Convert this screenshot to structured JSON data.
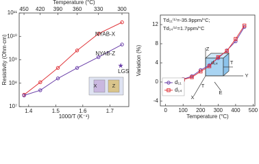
{
  "chart_data": [
    {
      "type": "line",
      "xlabel": "1000/T (K⁻¹)",
      "ylabel": "Resistivity (Ohm·cm)",
      "x2label": "Temperature (°C)",
      "xlim": [
        1.365,
        1.77
      ],
      "xticks": [
        1.4,
        1.5,
        1.6,
        1.7
      ],
      "x2ticks": [
        450,
        420,
        390,
        360,
        330,
        300
      ],
      "ylim": [
        10000000,
        100000000000
      ],
      "log_y": true,
      "yticks": [
        {
          "value": 10000000,
          "label": "10⁷"
        },
        {
          "value": 100000000,
          "label": "10⁸"
        },
        {
          "value": 1000000000,
          "label": "10⁹"
        },
        {
          "value": 10000000000,
          "label": "10¹⁰"
        },
        {
          "value": 100000000000,
          "label": "10¹¹"
        }
      ],
      "legend": "inline",
      "series": [
        {
          "name": "NYAB-X",
          "color": "#e0353a",
          "marker": "circle",
          "x": [
            1.383,
            1.443,
            1.508,
            1.579,
            1.658,
            1.745
          ],
          "values": [
            32000000,
            110000000,
            450000000,
            2500000000,
            13000000000,
            40000000000
          ]
        },
        {
          "name": "NYAB-Z",
          "color": "#6a3fa8",
          "marker": "circle",
          "x": [
            1.383,
            1.443,
            1.508,
            1.579,
            1.658,
            1.745
          ],
          "values": [
            30000000,
            50000000,
            160000000,
            450000000,
            1300000000,
            4500000000
          ]
        },
        {
          "name": "LGS",
          "color": "#6a3fa8",
          "marker": "star",
          "x": [
            1.74
          ],
          "values": [
            560000000
          ]
        }
      ],
      "inset_labels": [
        "X",
        "Z"
      ]
    },
    {
      "type": "line",
      "xlabel": "Temperature (°C)",
      "ylabel": "Variation (%)",
      "xlim": [
        -30,
        510
      ],
      "xticks": [
        0,
        100,
        200,
        300,
        400,
        500
      ],
      "ylim": [
        -5,
        14
      ],
      "yticks": [
        -4,
        0,
        4,
        8,
        12
      ],
      "legend": "lower left",
      "annotations": [
        "Td₁₁⁽¹⁾=-35.9ppm/°C;",
        "Td₁₄⁽¹⁾=1.7ppm/°C"
      ],
      "series": [
        {
          "name": "d₁₁",
          "color": "#6a3fa8",
          "marker": "circle",
          "x": [
            25,
            50,
            100,
            150,
            200,
            250,
            300,
            350,
            400,
            450
          ],
          "values": [
            0.1,
            0.2,
            0.6,
            1.2,
            2.5,
            3.5,
            5,
            6.6,
            8.5,
            11.5
          ]
        },
        {
          "name": "d₁₄",
          "color": "#e0353a",
          "marker": "square",
          "x": [
            25,
            50,
            100,
            150,
            200,
            250,
            300,
            350,
            400,
            450
          ],
          "values": [
            0,
            0.3,
            0.5,
            1,
            2.2,
            3.3,
            5.2,
            6.5,
            9,
            11.8
          ]
        }
      ],
      "inset_labels": [
        "Z",
        "T",
        "d₁₄",
        "T",
        "E",
        "X",
        "Y"
      ]
    }
  ]
}
